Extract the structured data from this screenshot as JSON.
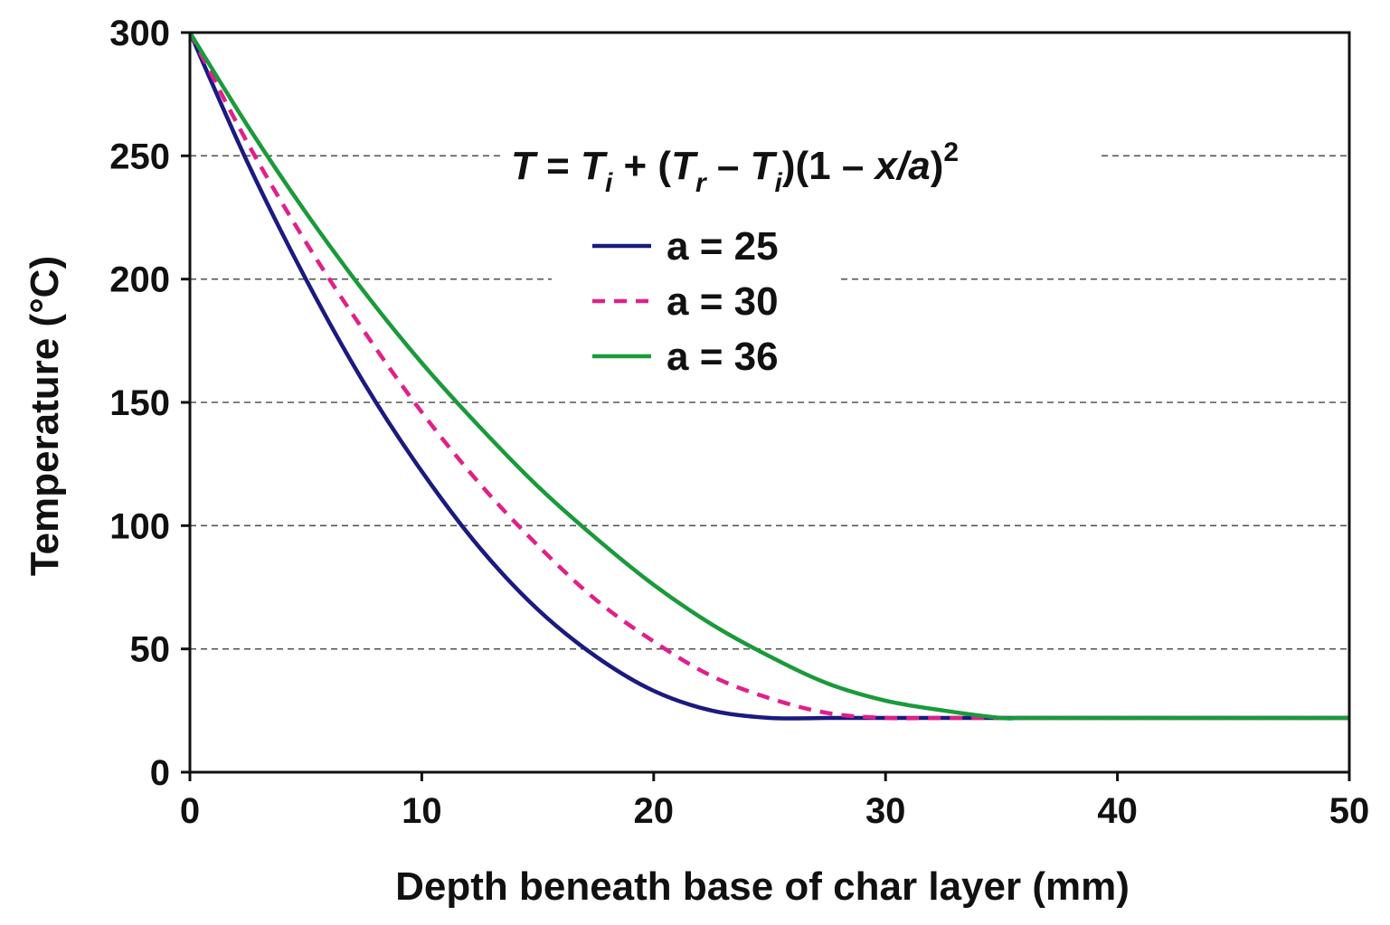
{
  "chart_data": {
    "type": "line",
    "title": "",
    "xlabel": "Depth beneath base of char layer (mm)",
    "ylabel": "Temperature (°C)",
    "xlim": [
      0,
      50
    ],
    "ylim": [
      0,
      300
    ],
    "x_ticks": [
      "0",
      "10",
      "20",
      "30",
      "40",
      "50"
    ],
    "y_ticks": [
      "0",
      "50",
      "100",
      "150",
      "200",
      "250",
      "300"
    ],
    "grid": "horizontal dashed",
    "legend_position": "upper-center",
    "equation": {
      "T": "T",
      "eq": " = ",
      "Ti1": "T",
      "sub_i1": "i",
      "plus": " + (",
      "Tr": "T",
      "sub_r": "r",
      "minus": " – ",
      "Ti2": "T",
      "sub_i2": "i",
      "mid": ")(1 – ",
      "xa": "x/a",
      "close": ")",
      "sup": "2"
    },
    "x": [
      0,
      2.5,
      5,
      7.5,
      10,
      12.5,
      15,
      17.5,
      20,
      22.5,
      25,
      27.5,
      30,
      32.5,
      35,
      36,
      40,
      45,
      50
    ],
    "series": [
      {
        "name": "a = 25",
        "color": "#1a1a80",
        "style": "solid",
        "values": [
          300,
          247,
          200,
          158,
          122,
          91,
          66,
          47,
          33,
          25,
          22,
          22,
          22,
          22,
          22,
          22,
          22,
          22,
          22
        ]
      },
      {
        "name": "a = 30",
        "color": "#e0208a",
        "style": "dashed",
        "values": [
          300,
          255,
          215,
          179,
          146,
          117,
          92,
          70,
          53,
          39,
          30,
          24,
          22,
          22,
          22,
          22,
          22,
          22,
          22
        ]
      },
      {
        "name": "a = 36",
        "color": "#1a9a3a",
        "style": "solid",
        "values": [
          300,
          262,
          227,
          195,
          166,
          140,
          116,
          95,
          76,
          60,
          47,
          36,
          29,
          25,
          22,
          22,
          22,
          22,
          22
        ]
      }
    ]
  }
}
